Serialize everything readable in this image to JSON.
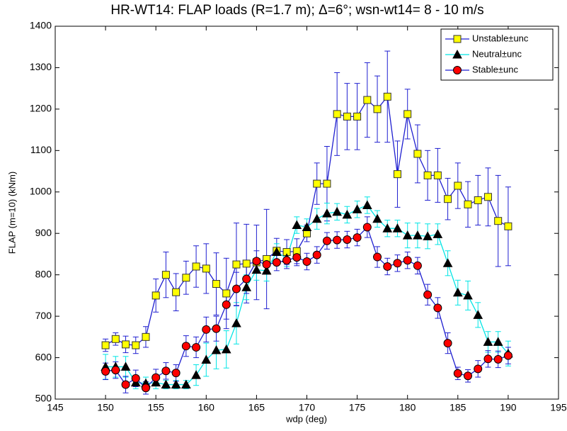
{
  "chart_data": {
    "type": "errorbar-line",
    "title": "HR-WT14: FLAP loads (R=1.7 m); Δ=6°; wsn-wt14= 8 - 10 m/s",
    "xlabel": "wdp (deg)",
    "ylabel": "FLAP (m=10) (kNm)",
    "x": [
      150,
      151,
      152,
      153,
      154,
      155,
      156,
      157,
      158,
      159,
      160,
      161,
      162,
      163,
      164,
      165,
      166,
      167,
      168,
      169,
      170,
      171,
      172,
      173,
      174,
      175,
      176,
      177,
      178,
      179,
      180,
      181,
      182,
      183,
      184,
      185,
      186,
      187,
      188,
      189,
      190
    ],
    "series": [
      {
        "name": "Unstable±unc",
        "color": "#1f1fd0",
        "marker": "square",
        "marker_color": "#ffff00",
        "marker_edge": "#333333",
        "values": [
          630,
          645,
          632,
          630,
          650,
          750,
          800,
          758,
          793,
          820,
          815,
          778,
          755,
          825,
          827,
          830,
          838,
          858,
          855,
          857,
          900,
          1020,
          1020,
          1188,
          1182,
          1182,
          1222,
          1200,
          1230,
          1043,
          1188,
          1092,
          1040,
          1040,
          983,
          1015,
          970,
          980,
          988,
          930,
          917
        ],
        "errors": [
          15,
          15,
          20,
          20,
          25,
          40,
          55,
          45,
          40,
          50,
          60,
          75,
          85,
          100,
          95,
          90,
          120,
          30,
          30,
          30,
          20,
          50,
          90,
          100,
          80,
          80,
          90,
          80,
          110,
          80,
          60,
          70,
          60,
          65,
          50,
          55,
          55,
          60,
          70,
          110,
          95
        ]
      },
      {
        "name": "Neutral±unc",
        "color": "#00e5e5",
        "marker": "triangle",
        "marker_color": "#000000",
        "marker_edge": "#000000",
        "values": [
          578,
          578,
          578,
          540,
          538,
          540,
          535,
          535,
          535,
          558,
          595,
          618,
          620,
          683,
          770,
          812,
          810,
          855,
          840,
          920,
          915,
          935,
          948,
          952,
          945,
          958,
          968,
          935,
          912,
          912,
          895,
          895,
          893,
          898,
          828,
          757,
          750,
          703,
          638,
          638,
          610
        ],
        "errors": [
          30,
          25,
          25,
          15,
          15,
          15,
          10,
          10,
          10,
          25,
          40,
          45,
          45,
          50,
          30,
          25,
          25,
          20,
          20,
          20,
          20,
          25,
          25,
          20,
          20,
          20,
          20,
          20,
          20,
          20,
          30,
          30,
          30,
          25,
          30,
          30,
          35,
          30,
          25,
          25,
          30
        ]
      },
      {
        "name": "Stable±unc",
        "color": "#1f1fd0",
        "marker": "circle",
        "marker_color": "#ff0000",
        "marker_edge": "#000000",
        "values": [
          567,
          570,
          535,
          550,
          527,
          552,
          568,
          563,
          628,
          625,
          668,
          670,
          728,
          766,
          790,
          833,
          825,
          830,
          835,
          842,
          832,
          848,
          882,
          884,
          885,
          890,
          915,
          843,
          820,
          828,
          835,
          822,
          752,
          720,
          635,
          562,
          556,
          573,
          597,
          596,
          605
        ],
        "errors": [
          20,
          20,
          20,
          20,
          15,
          20,
          20,
          20,
          25,
          25,
          30,
          30,
          35,
          40,
          35,
          25,
          20,
          20,
          20,
          20,
          20,
          20,
          20,
          20,
          20,
          20,
          25,
          25,
          20,
          20,
          20,
          20,
          25,
          25,
          25,
          15,
          15,
          20,
          20,
          20,
          20
        ]
      }
    ],
    "xlim": [
      145,
      195
    ],
    "xticks": [
      145,
      150,
      155,
      160,
      165,
      170,
      175,
      180,
      185,
      190,
      195
    ],
    "ylim": [
      500,
      1400
    ],
    "yticks": [
      500,
      600,
      700,
      800,
      900,
      1000,
      1100,
      1200,
      1300,
      1400
    ],
    "grid": false,
    "legend": "upper right"
  }
}
